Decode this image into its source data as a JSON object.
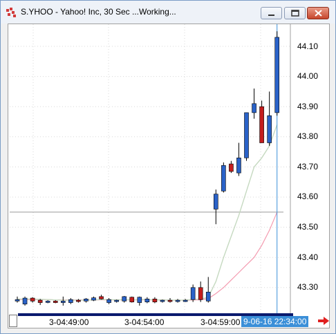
{
  "window": {
    "title": "S.YHOO - Yahoo! Inc, 30 Sec ...Working...",
    "buttons": {
      "minimize": "minimize",
      "maximize": "maximize",
      "close": "close"
    }
  },
  "colors": {
    "up": "#2a62c8",
    "down": "#c41d1d",
    "ma_fast": "#c5d9c0",
    "ma_slow": "#f49bb0",
    "cursor_line": "#3b8fd8",
    "date_bg": "#3b8fd8"
  },
  "chart_data": {
    "type": "candlestick",
    "symbol": "S.YHOO",
    "interval": "30 Sec",
    "ylim": [
      43.22,
      44.2
    ],
    "y_ticks": [
      "44.10",
      "44.00",
      "43.90",
      "43.80",
      "43.70",
      "43.60",
      "43.50",
      "43.40",
      "43.30"
    ],
    "x_ticks": [
      "3-04:49:00",
      "3-04:54:00",
      "3-04:59:00"
    ],
    "cursor_date": "9-06-16 22:34:00",
    "horizontal_line": 43.55,
    "candles": [
      {
        "o": 43.255,
        "h": 43.27,
        "l": 43.25,
        "c": 43.26
      },
      {
        "o": 43.245,
        "h": 43.27,
        "l": 43.24,
        "c": 43.265
      },
      {
        "o": 43.265,
        "h": 43.268,
        "l": 43.25,
        "c": 43.255
      },
      {
        "o": 43.258,
        "h": 43.262,
        "l": 43.242,
        "c": 43.25
      },
      {
        "o": 43.252,
        "h": 43.258,
        "l": 43.248,
        "c": 43.255
      },
      {
        "o": 43.255,
        "h": 43.258,
        "l": 43.248,
        "c": 43.25
      },
      {
        "o": 43.25,
        "h": 43.27,
        "l": 43.24,
        "c": 43.255
      },
      {
        "o": 43.25,
        "h": 43.265,
        "l": 43.245,
        "c": 43.26
      },
      {
        "o": 43.258,
        "h": 43.262,
        "l": 43.25,
        "c": 43.255
      },
      {
        "o": 43.255,
        "h": 43.265,
        "l": 43.25,
        "c": 43.262
      },
      {
        "o": 43.258,
        "h": 43.27,
        "l": 43.255,
        "c": 43.266
      },
      {
        "o": 43.27,
        "h": 43.276,
        "l": 43.26,
        "c": 43.262
      },
      {
        "o": 43.25,
        "h": 43.265,
        "l": 43.245,
        "c": 43.26
      },
      {
        "o": 43.255,
        "h": 43.26,
        "l": 43.25,
        "c": 43.258
      },
      {
        "o": 43.255,
        "h": 43.272,
        "l": 43.25,
        "c": 43.27
      },
      {
        "o": 43.268,
        "h": 43.27,
        "l": 43.25,
        "c": 43.252
      },
      {
        "o": 43.25,
        "h": 43.27,
        "l": 43.24,
        "c": 43.268
      },
      {
        "o": 43.252,
        "h": 43.268,
        "l": 43.248,
        "c": 43.262
      },
      {
        "o": 43.262,
        "h": 43.268,
        "l": 43.248,
        "c": 43.252
      },
      {
        "o": 43.255,
        "h": 43.26,
        "l": 43.25,
        "c": 43.258
      },
      {
        "o": 43.258,
        "h": 43.265,
        "l": 43.25,
        "c": 43.255
      },
      {
        "o": 43.255,
        "h": 43.262,
        "l": 43.25,
        "c": 43.258
      },
      {
        "o": 43.256,
        "h": 43.262,
        "l": 43.252,
        "c": 43.258
      },
      {
        "o": 43.26,
        "h": 43.31,
        "l": 43.252,
        "c": 43.3
      },
      {
        "o": 43.3,
        "h": 43.32,
        "l": 43.252,
        "c": 43.26
      },
      {
        "o": 43.255,
        "h": 43.335,
        "l": 43.25,
        "c": 43.285
      },
      {
        "o": 43.56,
        "h": 43.625,
        "l": 43.51,
        "c": 43.61
      },
      {
        "o": 43.62,
        "h": 43.715,
        "l": 43.615,
        "c": 43.705
      },
      {
        "o": 43.71,
        "h": 43.72,
        "l": 43.68,
        "c": 43.685
      },
      {
        "o": 43.68,
        "h": 43.78,
        "l": 43.67,
        "c": 43.73
      },
      {
        "o": 43.73,
        "h": 43.88,
        "l": 43.72,
        "c": 43.88
      },
      {
        "o": 43.88,
        "h": 43.96,
        "l": 43.86,
        "c": 43.91
      },
      {
        "o": 43.9,
        "h": 43.92,
        "l": 43.78,
        "c": 43.78
      },
      {
        "o": 43.78,
        "h": 43.95,
        "l": 43.77,
        "c": 43.87
      },
      {
        "o": 43.88,
        "h": 44.15,
        "l": 43.87,
        "c": 44.13
      }
    ],
    "ma_fast": [
      43.262,
      43.262,
      43.262,
      43.261,
      43.26,
      43.259,
      43.258,
      43.258,
      43.258,
      43.258,
      43.259,
      43.26,
      43.26,
      43.259,
      43.26,
      43.259,
      43.26,
      43.26,
      43.259,
      43.259,
      43.258,
      43.258,
      43.258,
      43.261,
      43.262,
      43.268,
      43.32,
      43.4,
      43.47,
      43.54,
      43.62,
      43.7,
      43.73,
      43.77,
      43.84
    ],
    "ma_slow": [
      43.26,
      43.26,
      43.26,
      43.26,
      43.26,
      43.259,
      43.259,
      43.259,
      43.259,
      43.259,
      43.259,
      43.259,
      43.259,
      43.259,
      43.259,
      43.259,
      43.259,
      43.259,
      43.259,
      43.259,
      43.258,
      43.258,
      43.258,
      43.259,
      43.259,
      43.263,
      43.28,
      43.3,
      43.325,
      43.35,
      43.375,
      43.4,
      43.44,
      43.49,
      43.55
    ]
  }
}
